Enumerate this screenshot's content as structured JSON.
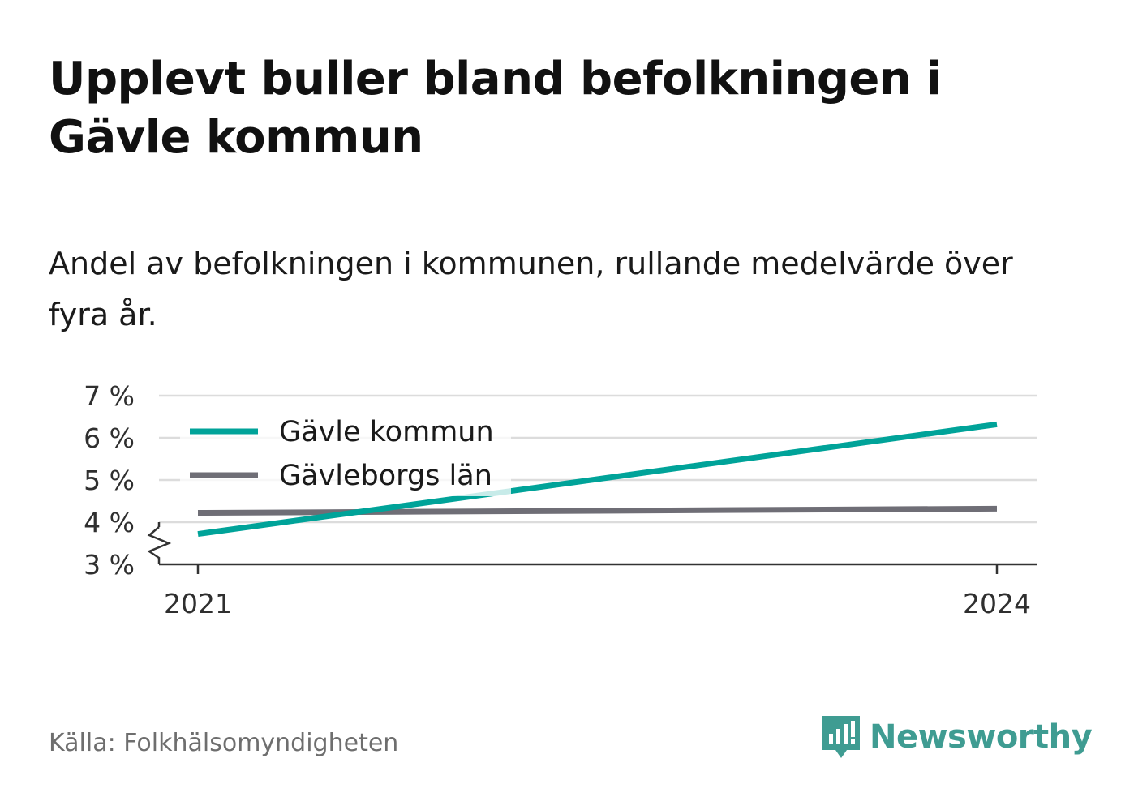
{
  "title": "Upplevt buller bland befolkningen i Gävle kommun",
  "subtitle": "Andel av befolkningen i kommunen, rullande medelvärde över fyra år.",
  "source": "Källa: Folkhälsomyndigheten",
  "brand": {
    "name": "Newsworthy",
    "color": "#3f9c92"
  },
  "chart_data": {
    "type": "line",
    "x": [
      "2021",
      "2024"
    ],
    "ylim": [
      3,
      7
    ],
    "yticks": [
      3,
      4,
      5,
      6,
      7
    ],
    "ytick_labels": [
      "3 %",
      "4 %",
      "5 %",
      "6 %",
      "7 %"
    ],
    "xtick_labels": [
      "2021",
      "2024"
    ],
    "y_axis_break": true,
    "grid": true,
    "legend_position": "top-left",
    "series": [
      {
        "name": "Gävle kommun",
        "values": [
          3.72,
          6.32
        ],
        "color": "#00a399"
      },
      {
        "name": "Gävleborgs län",
        "values": [
          4.22,
          4.32
        ],
        "color": "#6f6e76"
      }
    ]
  }
}
